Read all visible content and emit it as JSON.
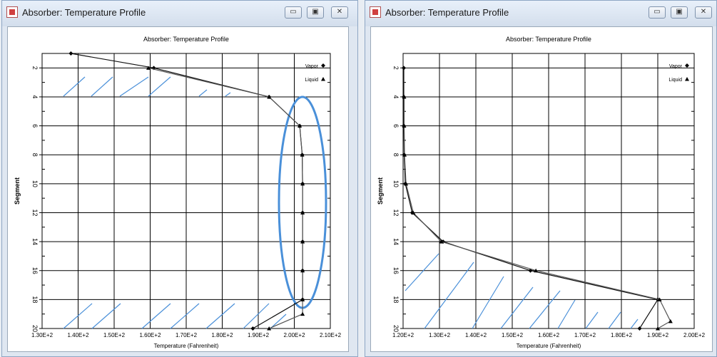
{
  "windows": [
    {
      "title": "Absorber: Temperature Profile",
      "buttons": {
        "minimize": "▭",
        "maximize": "▣",
        "close": "✕"
      },
      "chart_data": {
        "type": "line",
        "title": "Absorber: Temperature Profile",
        "xlabel": "Temperature (Fahrenheit)",
        "ylabel": "Segment",
        "xlim": [
          130,
          210
        ],
        "ylim": [
          20,
          1
        ],
        "x_ticks": [
          "1.30E+2",
          "1.40E+2",
          "1.50E+2",
          "1.60E+2",
          "1.70E+2",
          "1.80E+2",
          "1.90E+2",
          "2.00E+2",
          "2.10E+2"
        ],
        "y_ticks": [
          "2",
          "4",
          "6",
          "8",
          "10",
          "12",
          "14",
          "16",
          "18",
          "20"
        ],
        "legend": {
          "placement": "top-right",
          "entries": [
            "Vapor",
            "Liquid"
          ]
        },
        "grid": true,
        "series": [
          {
            "name": "Vapor",
            "x": [
              138,
              161,
              193,
              201.5,
              202.2,
              202.3,
              202.3,
              202.3,
              202.3,
              202.3,
              188.5
            ],
            "y": [
              1,
              2,
              4,
              6,
              8,
              10,
              12,
              14,
              16,
              18,
              20
            ]
          },
          {
            "name": "Liquid",
            "x": [
              159.5,
              193,
              201.5,
              202.2,
              202.3,
              202.3,
              202.3,
              202.3,
              202.3,
              202.3,
              193
            ],
            "y": [
              2,
              4,
              6,
              8,
              10,
              12,
              14,
              16,
              18,
              19,
              20
            ]
          }
        ]
      }
    },
    {
      "title": "Absorber: Temperature Profile",
      "buttons": {
        "minimize": "▭",
        "maximize": "▣",
        "close": "✕"
      },
      "chart_data": {
        "type": "line",
        "title": "Absorber: Temperature Profile",
        "xlabel": "Temperature (Fahrenheit)",
        "ylabel": "Segment",
        "xlim": [
          120,
          200
        ],
        "ylim": [
          20,
          1
        ],
        "x_ticks": [
          "1.20E+2",
          "1.30E+2",
          "1.40E+2",
          "1.50E+2",
          "1.60E+2",
          "1.70E+2",
          "1.80E+2",
          "1.90E+2",
          "2.00E+2"
        ],
        "y_ticks": [
          "2",
          "4",
          "6",
          "8",
          "10",
          "12",
          "14",
          "16",
          "18",
          "20"
        ],
        "legend": {
          "placement": "top-right",
          "entries": [
            "Vapor",
            "Liquid"
          ]
        },
        "grid": true,
        "series": [
          {
            "name": "Vapor",
            "x": [
              120.2,
              120.2,
              120.2,
              120.3,
              120.6,
              122.5,
              131,
              155,
              190,
              185
            ],
            "y": [
              2,
              4,
              6,
              8,
              10,
              12,
              14,
              16,
              18,
              20
            ]
          },
          {
            "name": "Liquid",
            "x": [
              120.3,
              120.3,
              120.4,
              120.8,
              122.8,
              130.5,
              156.5,
              190.5,
              193.5,
              190
            ],
            "y": [
              4,
              6,
              8,
              10,
              12,
              14,
              16,
              18,
              19.5,
              20
            ]
          }
        ]
      }
    }
  ],
  "annotation_color": "#4a90d9",
  "grid_color": "#000000"
}
